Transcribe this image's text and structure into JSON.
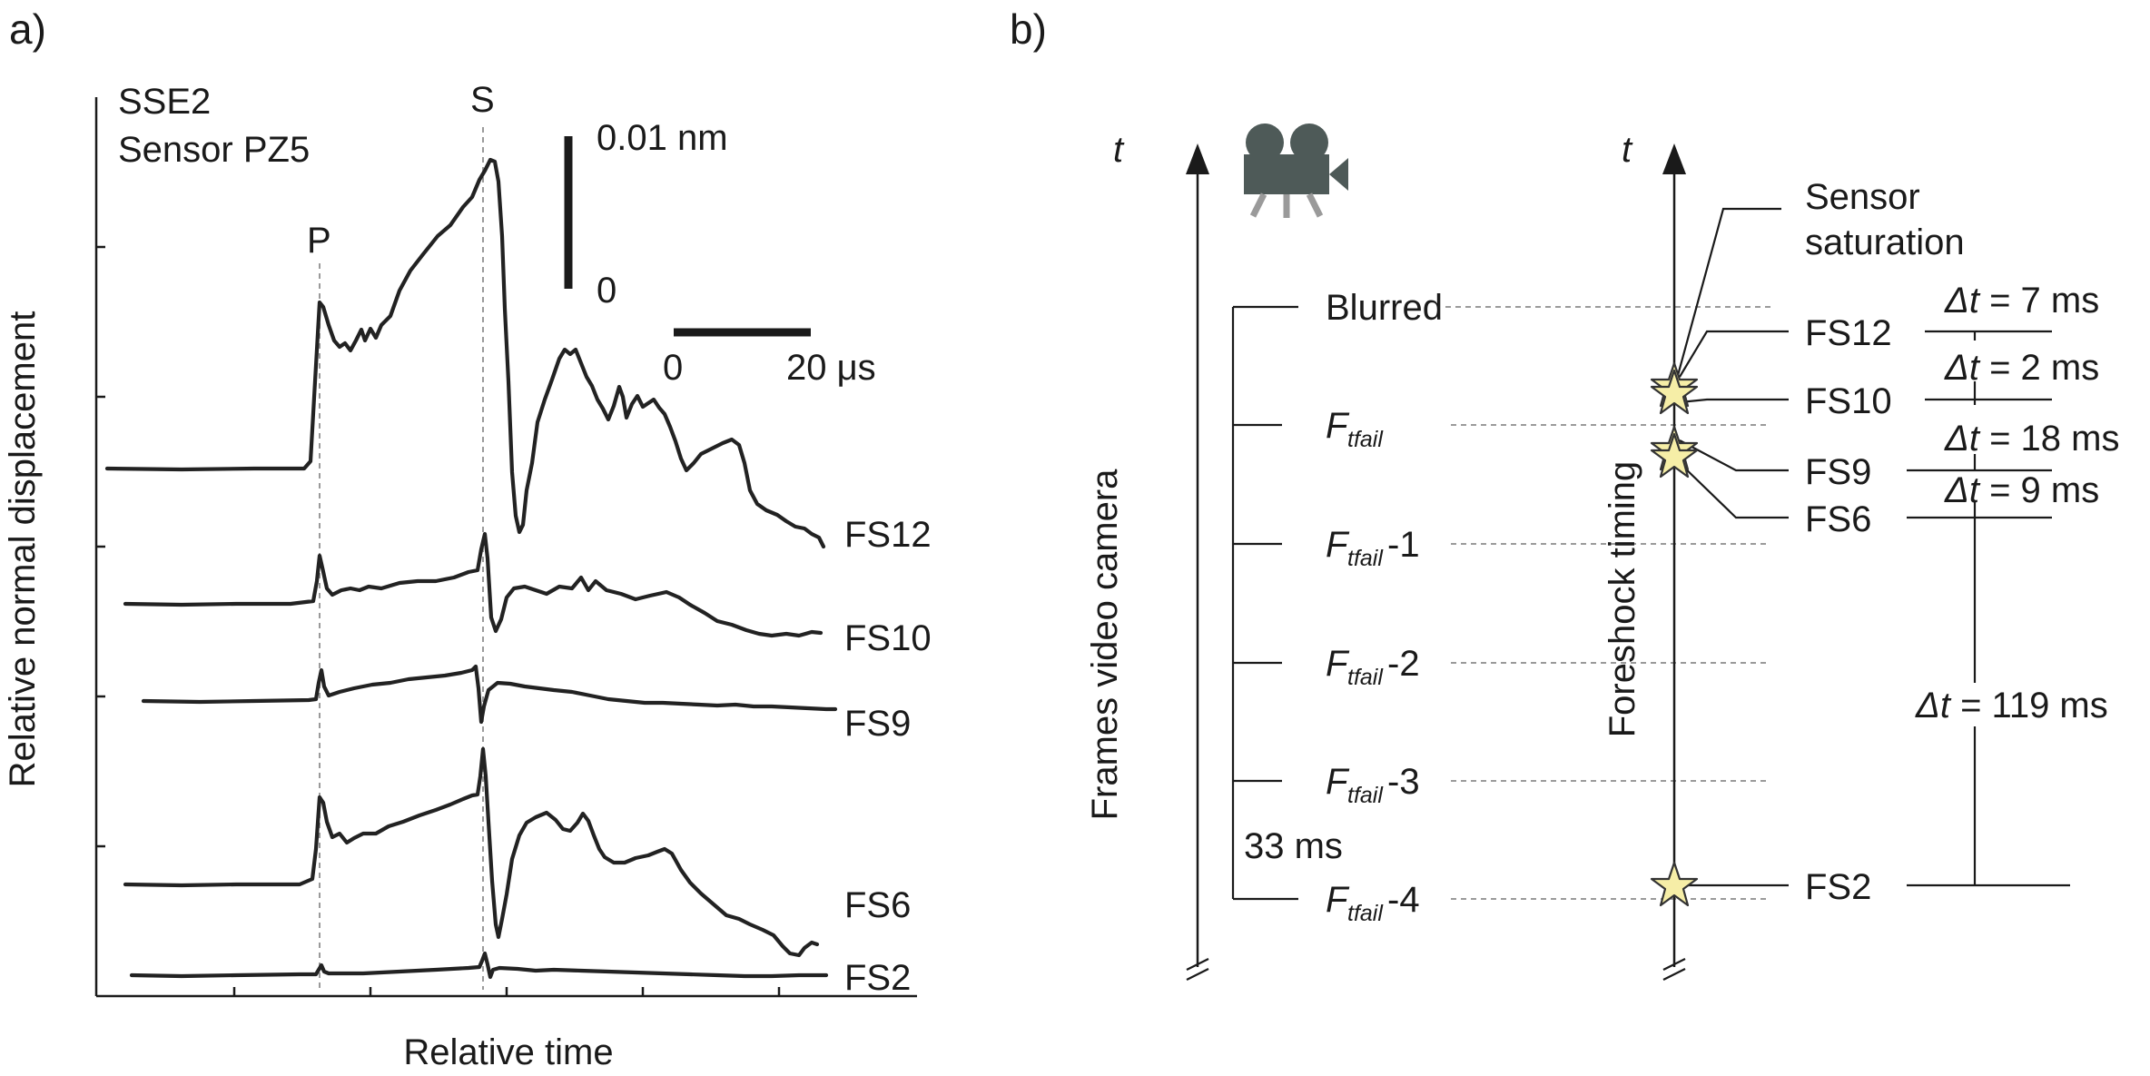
{
  "panel_a": {
    "label": "a)",
    "title_line1": "SSE2",
    "title_line2": "Sensor PZ5",
    "phase_p": "P",
    "phase_s": "S",
    "amp_scale_top": "0.01 nm",
    "amp_scale_bottom": "0",
    "time_scale_left": "0",
    "time_scale_right": "20 μs",
    "xlabel": "Relative time",
    "ylabel": "Relative normal displacement",
    "traces": [
      {
        "name": "FS12",
        "label": "FS12"
      },
      {
        "name": "FS10",
        "label": "FS10"
      },
      {
        "name": "FS9",
        "label": "FS9"
      },
      {
        "name": "FS6",
        "label": "FS6"
      },
      {
        "name": "FS2",
        "label": "FS2"
      }
    ]
  },
  "panel_b": {
    "label": "b)",
    "time_symbol": "t",
    "left_axis_label": "Frames video camera",
    "right_axis_label": "Foreshock timing",
    "camera_icon": "video-camera-icon",
    "frames": {
      "blurred": "Blurred",
      "f_main": "F",
      "f_sub": "tfail",
      "minus1": "-1",
      "minus2": "-2",
      "minus3": "-3",
      "minus4": "-4"
    },
    "frame_interval": "33 ms",
    "sensor_saturation_line1": "Sensor",
    "sensor_saturation_line2": "saturation",
    "foreshocks": [
      "FS12",
      "FS10",
      "FS9",
      "FS6",
      "FS2"
    ],
    "delta_symbol": "Δt",
    "delta_values": [
      "= 7 ms",
      "= 2 ms",
      "= 18 ms",
      "= 9 ms",
      "= 119 ms"
    ],
    "star_icon": "star-icon",
    "star_color": "#f6eea7"
  }
}
